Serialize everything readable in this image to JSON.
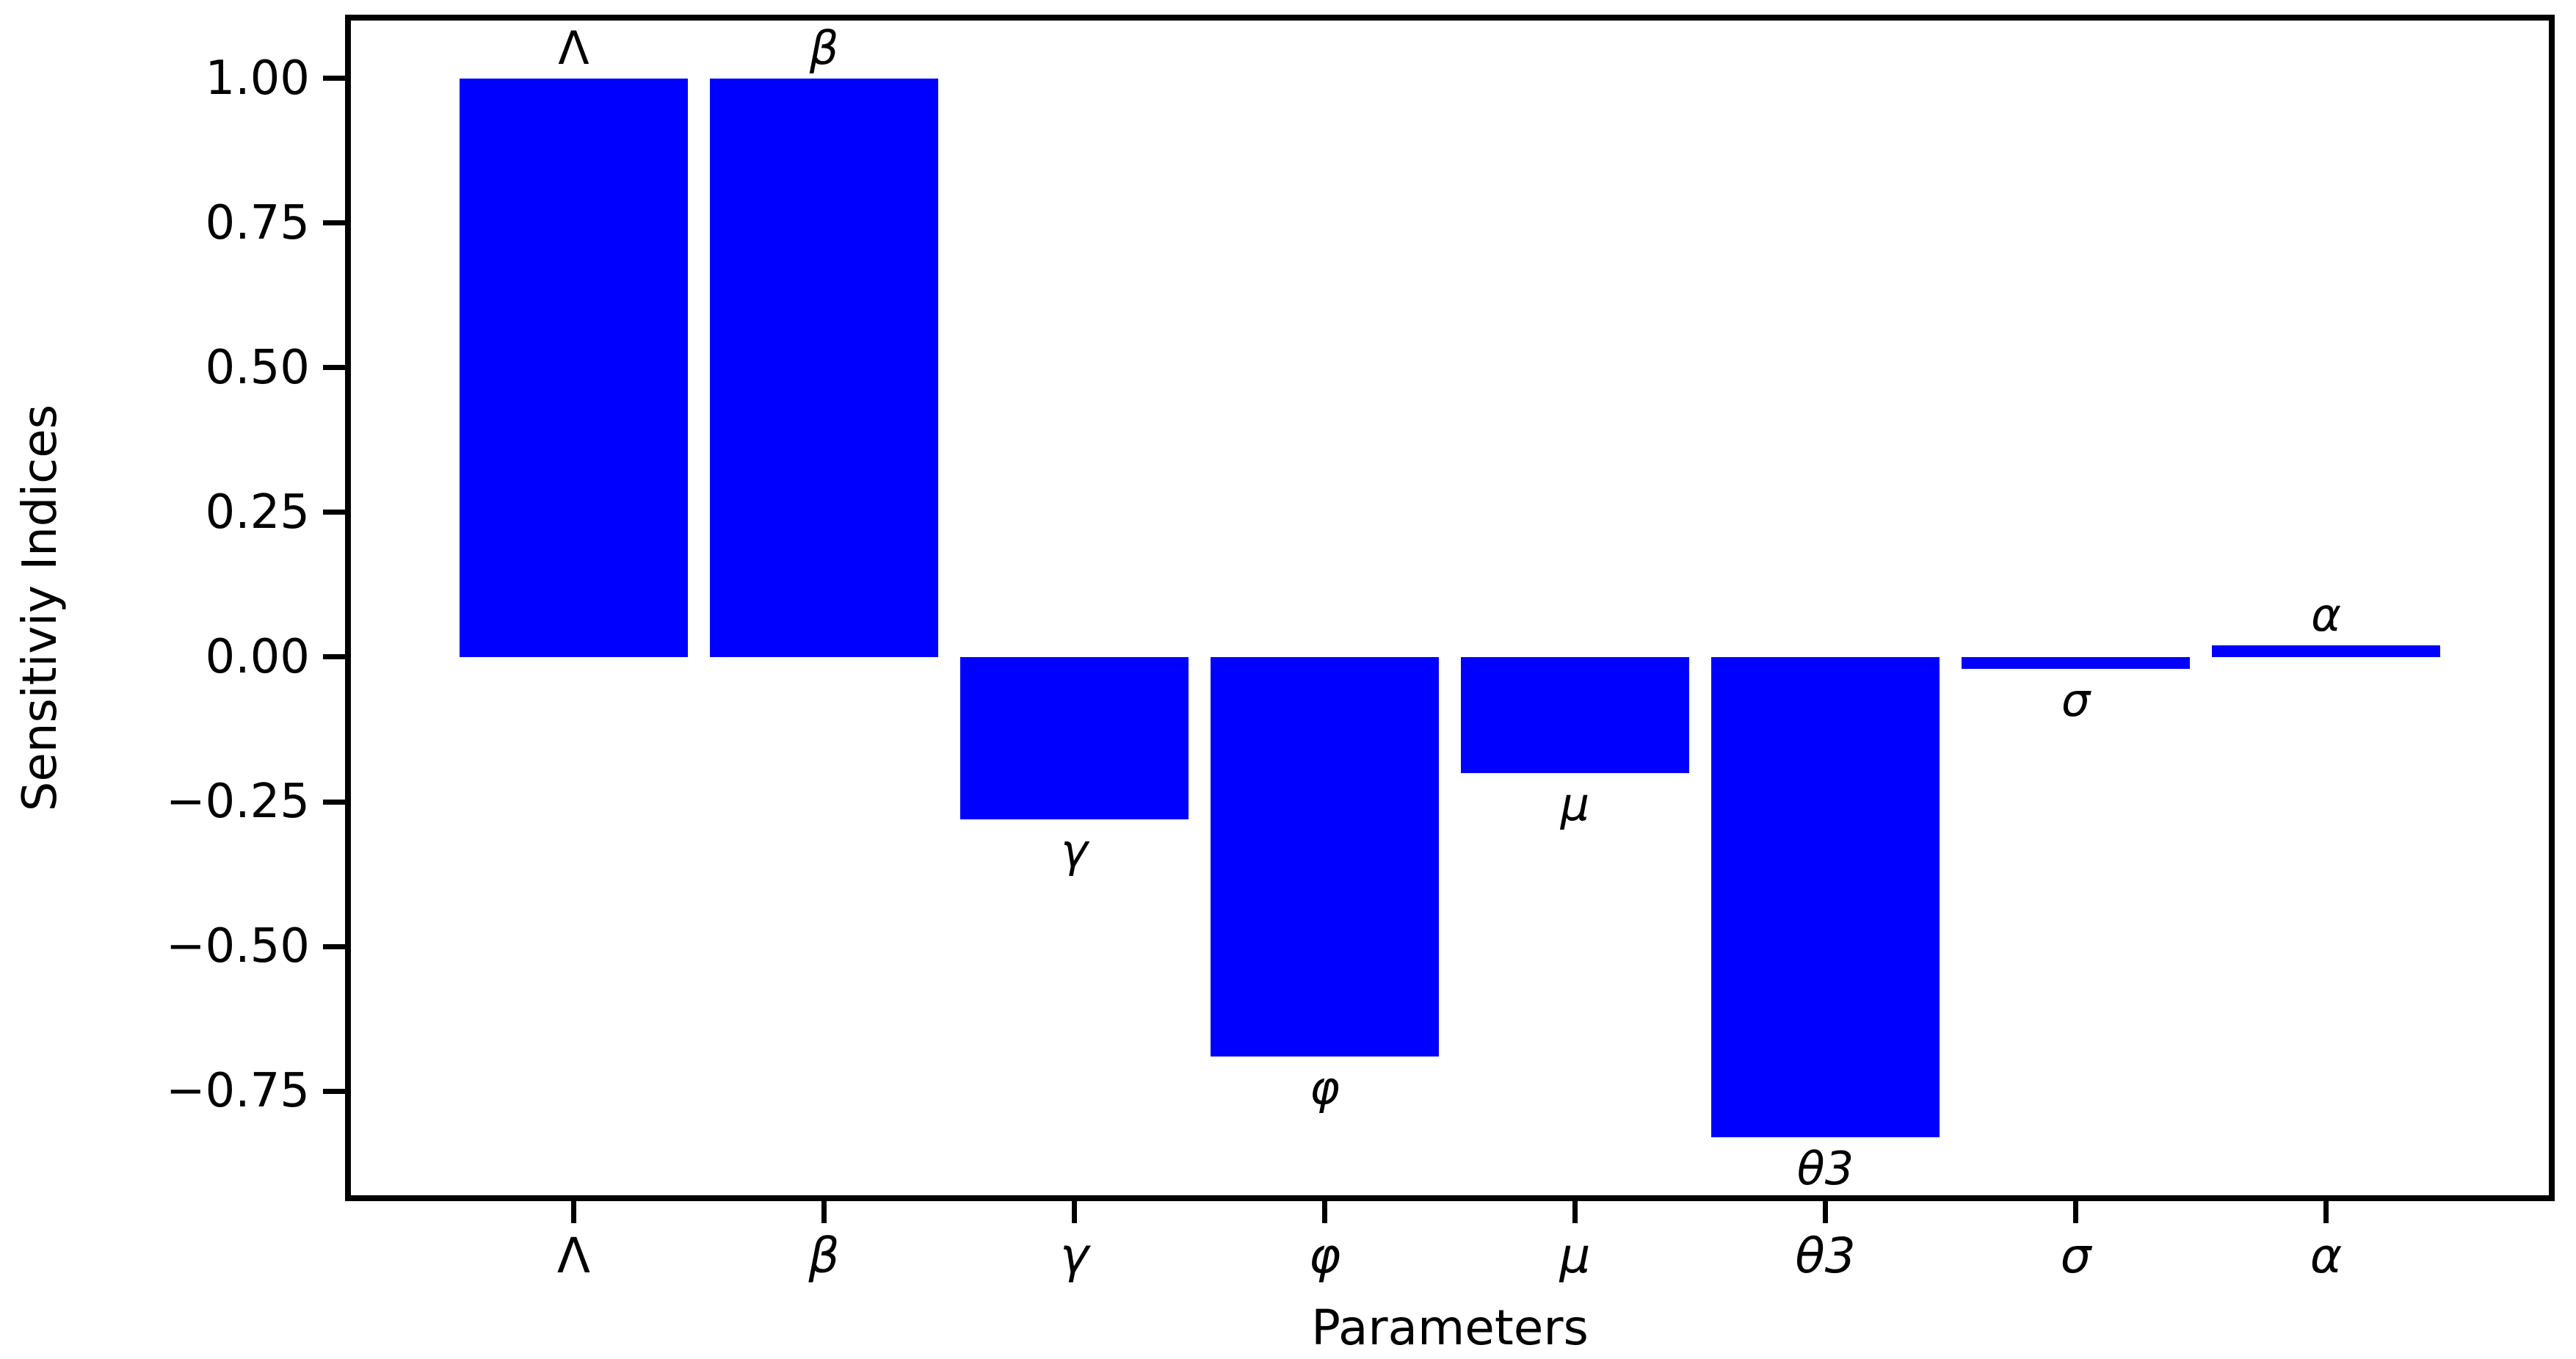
{
  "figure": {
    "background": "#ffffff",
    "text_color": "#000000"
  },
  "chart_data": {
    "type": "bar",
    "title": "",
    "xlabel": "Parameters",
    "ylabel": "Sensitiviy Indices",
    "categories": [
      "Λ",
      "β",
      "γ",
      "φ",
      "μ",
      "θ3",
      "σ",
      "α"
    ],
    "values": [
      1.0,
      1.0,
      -0.28,
      -0.69,
      -0.2,
      -0.83,
      -0.02,
      0.02
    ],
    "bar_end_labels": [
      "Λ",
      "β",
      "γ",
      "φ",
      "μ",
      "θ3",
      "σ",
      "α"
    ],
    "upright_labels": [
      "Λ"
    ],
    "bar_color": "#0000ff",
    "yticks": [
      1.0,
      0.75,
      0.5,
      0.25,
      0.0,
      -0.25,
      -0.5,
      -0.75
    ],
    "ytick_labels": [
      "1.00",
      "0.75",
      "0.50",
      "0.25",
      "0.00",
      "−0.25",
      "−0.50",
      "−0.75"
    ],
    "ylim": [
      -0.93,
      1.1
    ],
    "grid": false,
    "legend": null
  }
}
